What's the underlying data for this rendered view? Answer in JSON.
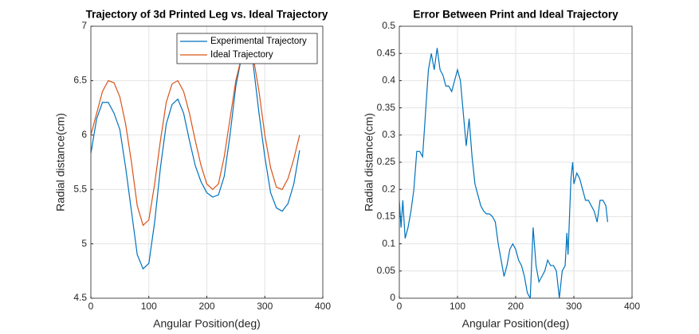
{
  "chart_data": [
    {
      "type": "line",
      "title": "Trajectory of 3d Printed Leg vs. Ideal Trajectory",
      "xlabel": "Angular Position(deg)",
      "ylabel": "Radial distance(cm)",
      "x": [
        0,
        10,
        20,
        30,
        40,
        50,
        60,
        70,
        80,
        90,
        100,
        110,
        120,
        130,
        140,
        150,
        160,
        170,
        180,
        190,
        200,
        210,
        220,
        230,
        240,
        250,
        260,
        270,
        280,
        290,
        300,
        310,
        320,
        330,
        340,
        350,
        360
      ],
      "series": [
        {
          "name": "Experimental Trajectory",
          "color": "#0072BD",
          "values": [
            5.83,
            6.15,
            6.3,
            6.3,
            6.2,
            6.05,
            5.7,
            5.3,
            4.9,
            4.77,
            4.82,
            5.2,
            5.7,
            6.1,
            6.28,
            6.33,
            6.2,
            5.95,
            5.72,
            5.57,
            5.47,
            5.43,
            5.45,
            5.62,
            6.0,
            6.45,
            6.72,
            6.8,
            6.65,
            6.2,
            5.8,
            5.47,
            5.33,
            5.3,
            5.37,
            5.55,
            5.86
          ]
        },
        {
          "name": "Ideal Trajectory",
          "color": "#D95319",
          "values": [
            6.0,
            6.2,
            6.4,
            6.5,
            6.48,
            6.35,
            6.1,
            5.75,
            5.35,
            5.17,
            5.22,
            5.55,
            5.95,
            6.3,
            6.47,
            6.5,
            6.4,
            6.2,
            5.95,
            5.72,
            5.55,
            5.5,
            5.55,
            5.8,
            6.15,
            6.5,
            6.72,
            6.8,
            6.72,
            6.4,
            6.0,
            5.7,
            5.52,
            5.5,
            5.6,
            5.78,
            6.0
          ]
        }
      ],
      "xlim": [
        0,
        400
      ],
      "xticks": [
        0,
        100,
        200,
        300,
        400
      ],
      "ylim": [
        4.5,
        7
      ],
      "yticks": [
        4.5,
        5,
        5.5,
        6,
        6.5,
        7
      ],
      "grid": true,
      "legend": "northeast"
    },
    {
      "type": "line",
      "title": "Error Between Print and Ideal Trajectory",
      "xlabel": "Angular Position(deg)",
      "ylabel": "Radial distance(cm)",
      "x": [
        0,
        3,
        6,
        10,
        15,
        20,
        25,
        30,
        35,
        40,
        45,
        50,
        55,
        60,
        65,
        70,
        75,
        80,
        85,
        90,
        95,
        100,
        105,
        110,
        115,
        120,
        125,
        130,
        135,
        140,
        145,
        150,
        155,
        160,
        165,
        170,
        175,
        180,
        185,
        190,
        195,
        200,
        205,
        210,
        215,
        220,
        225,
        230,
        235,
        240,
        245,
        250,
        255,
        260,
        265,
        270,
        275,
        280,
        285,
        288,
        290,
        295,
        298,
        300,
        305,
        310,
        315,
        320,
        325,
        330,
        335,
        340,
        345,
        350,
        355,
        358
      ],
      "series": [
        {
          "color": "#0072BD",
          "values": [
            0.18,
            0.13,
            0.18,
            0.11,
            0.13,
            0.16,
            0.2,
            0.27,
            0.27,
            0.26,
            0.34,
            0.42,
            0.45,
            0.42,
            0.46,
            0.42,
            0.41,
            0.39,
            0.39,
            0.38,
            0.4,
            0.42,
            0.4,
            0.34,
            0.28,
            0.33,
            0.26,
            0.21,
            0.19,
            0.17,
            0.16,
            0.155,
            0.155,
            0.15,
            0.14,
            0.1,
            0.07,
            0.04,
            0.06,
            0.09,
            0.1,
            0.09,
            0.07,
            0.06,
            0.04,
            0.01,
            0.0,
            0.13,
            0.06,
            0.03,
            0.04,
            0.05,
            0.07,
            0.06,
            0.06,
            0.05,
            0.0,
            0.05,
            0.06,
            0.12,
            0.08,
            0.22,
            0.25,
            0.21,
            0.23,
            0.22,
            0.2,
            0.18,
            0.18,
            0.17,
            0.16,
            0.14,
            0.18,
            0.18,
            0.17,
            0.14
          ]
        }
      ],
      "xlim": [
        0,
        400
      ],
      "xticks": [
        0,
        100,
        200,
        300,
        400
      ],
      "ylim": [
        0,
        0.5
      ],
      "yticks": [
        0,
        0.05,
        0.1,
        0.15,
        0.2,
        0.25,
        0.3,
        0.35,
        0.4,
        0.45,
        0.5
      ],
      "grid": true
    }
  ]
}
